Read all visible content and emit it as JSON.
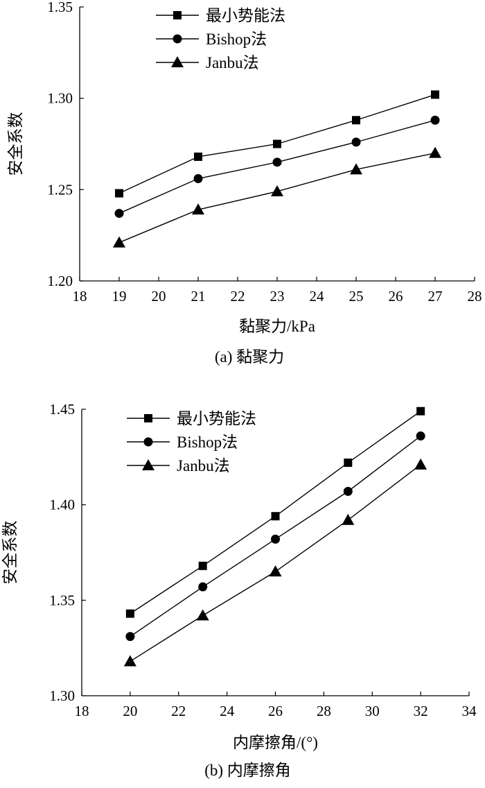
{
  "chart_data": [
    {
      "type": "line",
      "caption": "(a) 黏聚力",
      "xlabel": "黏聚力/kPa",
      "ylabel": "安全系数",
      "xlim": [
        18,
        28
      ],
      "ylim": [
        1.2,
        1.35
      ],
      "xticks": [
        "18",
        "19",
        "20",
        "21",
        "22",
        "23",
        "24",
        "25",
        "26",
        "27",
        "28"
      ],
      "yticks": [
        "1.20",
        "1.25",
        "1.30",
        "1.35"
      ],
      "legend_position": "top-left",
      "grid": false,
      "x": [
        19,
        21,
        23,
        25,
        27
      ],
      "series": [
        {
          "name": "最小势能法",
          "marker": "square",
          "values": [
            1.248,
            1.268,
            1.275,
            1.288,
            1.302
          ]
        },
        {
          "name": "Bishop法",
          "marker": "circle",
          "values": [
            1.237,
            1.256,
            1.265,
            1.276,
            1.288
          ]
        },
        {
          "name": "Janbu法",
          "marker": "triangle",
          "values": [
            1.221,
            1.239,
            1.249,
            1.261,
            1.27
          ]
        }
      ]
    },
    {
      "type": "line",
      "caption": "(b) 内摩擦角",
      "xlabel": "内摩擦角/(°)",
      "ylabel": "安全系数",
      "xlim": [
        18,
        34
      ],
      "ylim": [
        1.3,
        1.45
      ],
      "xticks": [
        "18",
        "20",
        "22",
        "24",
        "26",
        "28",
        "30",
        "32",
        "34"
      ],
      "yticks": [
        "1.30",
        "1.35",
        "1.40",
        "1.45"
      ],
      "legend_position": "top-left",
      "grid": false,
      "x": [
        20,
        23,
        26,
        29,
        32
      ],
      "series": [
        {
          "name": "最小势能法",
          "marker": "square",
          "values": [
            1.343,
            1.368,
            1.394,
            1.422,
            1.449
          ]
        },
        {
          "name": "Bishop法",
          "marker": "circle",
          "values": [
            1.331,
            1.357,
            1.382,
            1.407,
            1.436
          ]
        },
        {
          "name": "Janbu法",
          "marker": "triangle",
          "values": [
            1.318,
            1.342,
            1.365,
            1.392,
            1.421
          ]
        }
      ]
    }
  ]
}
